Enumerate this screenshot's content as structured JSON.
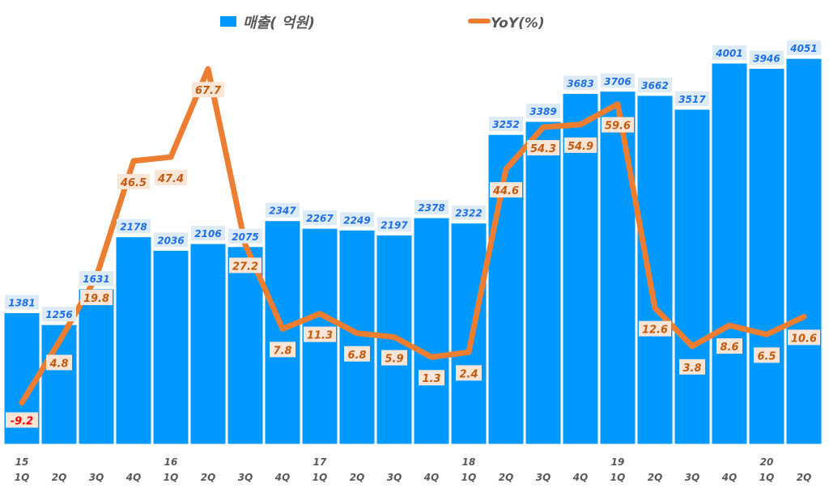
{
  "chart_data": {
    "type": "bar+line",
    "legend_position": "top",
    "categories": [
      "15 1Q",
      "2Q",
      "3Q",
      "4Q",
      "16 1Q",
      "2Q",
      "3Q",
      "4Q",
      "17 1Q",
      "2Q",
      "3Q",
      "4Q",
      "18 1Q",
      "2Q",
      "3Q",
      "4Q",
      "19 1Q",
      "2Q",
      "3Q",
      "4Q",
      "20 1Q",
      "2Q"
    ],
    "tick_labels": [
      [
        "15",
        "1Q"
      ],
      [
        "",
        "2Q"
      ],
      [
        "",
        "3Q"
      ],
      [
        "",
        "4Q"
      ],
      [
        "16",
        "1Q"
      ],
      [
        "",
        "2Q"
      ],
      [
        "",
        "3Q"
      ],
      [
        "",
        "4Q"
      ],
      [
        "17",
        "1Q"
      ],
      [
        "",
        "2Q"
      ],
      [
        "",
        "3Q"
      ],
      [
        "",
        "4Q"
      ],
      [
        "18",
        "1Q"
      ],
      [
        "",
        "2Q"
      ],
      [
        "",
        "3Q"
      ],
      [
        "",
        "4Q"
      ],
      [
        "19",
        "1Q"
      ],
      [
        "",
        "2Q"
      ],
      [
        "",
        "3Q"
      ],
      [
        "",
        "4Q"
      ],
      [
        "20",
        "1Q"
      ],
      [
        "",
        "2Q"
      ]
    ],
    "series": [
      {
        "name": "매출( 억원)",
        "type": "bar",
        "color": "#0099FF",
        "axis": "primary",
        "values": [
          1381,
          1256,
          1631,
          2178,
          2036,
          2106,
          2075,
          2347,
          2267,
          2249,
          2197,
          2378,
          2322,
          3252,
          3389,
          3683,
          3706,
          3662,
          3517,
          4001,
          3946,
          4051
        ]
      },
      {
        "name": "YoY(%)",
        "type": "line",
        "color": "#ED7D31",
        "axis": "secondary",
        "values": [
          -9.2,
          4.8,
          19.8,
          46.5,
          47.4,
          67.7,
          27.2,
          7.8,
          11.3,
          6.8,
          5.9,
          1.3,
          2.4,
          44.6,
          54.3,
          54.9,
          59.6,
          12.6,
          3.8,
          8.6,
          6.5,
          10.6
        ]
      }
    ],
    "ylim_primary": [
      0,
      4664
    ],
    "ylim_secondary": [
      -18.8,
      83.6
    ],
    "grid": false,
    "negative_label_color": "#FF0000"
  }
}
